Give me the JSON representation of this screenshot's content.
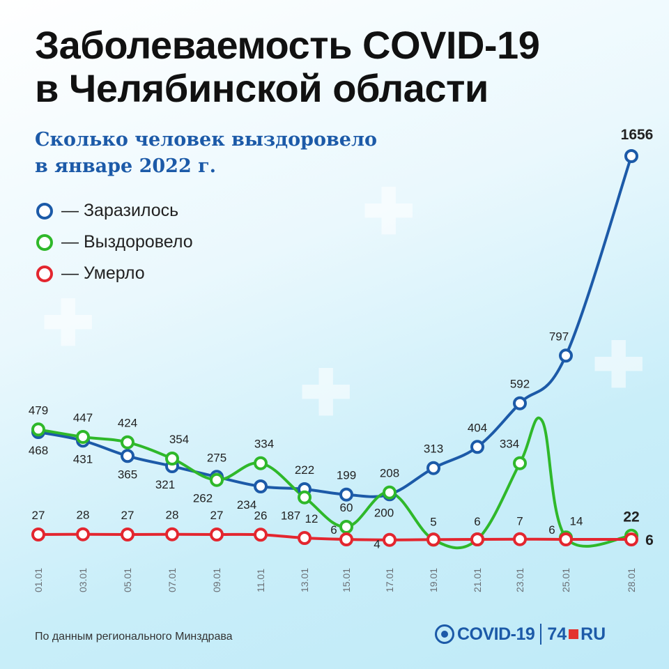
{
  "header": {
    "title_line1": "Заболеваемость COVID-19",
    "title_line2": "в Челябинской области",
    "subtitle_line1": "Сколько человек выздоровело",
    "subtitle_line2": "в январе 2022 г."
  },
  "legend": {
    "items": [
      {
        "label": "— Заразилось",
        "color": "#1c5aa8"
      },
      {
        "label": "— Выздоровело",
        "color": "#2fb82a"
      },
      {
        "label": "— Умерло",
        "color": "#e3262f"
      }
    ]
  },
  "footer": {
    "source": "По данным регионального Минздрава",
    "brand_covid": "COVID-19",
    "brand_num": "74",
    "brand_ru": "RU"
  },
  "colors": {
    "infected": "#1c5aa8",
    "recovered": "#2fb82a",
    "died": "#e3262f"
  },
  "chart_data": {
    "type": "line",
    "x": [
      "01.01",
      "03.01",
      "05.01",
      "07.01",
      "09.01",
      "11.01",
      "13.01",
      "15.01",
      "17.01",
      "19.01",
      "21.01",
      "23.01",
      "25.01",
      "28.01"
    ],
    "series": [
      {
        "name": "Заразилось",
        "values": [
          468,
          431,
          365,
          321,
          275,
          234,
          222,
          199,
          200,
          313,
          404,
          592,
          797,
          1656
        ],
        "labels": [
          "468",
          "431",
          "365",
          "321",
          "275",
          "234",
          "222",
          "199",
          "200",
          "313",
          "404",
          "592",
          "797",
          "1656"
        ]
      },
      {
        "name": "Выздоровело",
        "values": [
          479,
          447,
          424,
          354,
          262,
          334,
          187,
          60,
          208,
          5,
          6,
          334,
          14,
          22
        ],
        "labels": [
          "479",
          "447",
          "424",
          "354",
          "262",
          "334",
          "187",
          "60",
          "208",
          "",
          "",
          "334",
          "14",
          "22"
        ]
      },
      {
        "name": "Умерло",
        "values": [
          27,
          28,
          27,
          28,
          27,
          26,
          12,
          6,
          4,
          5,
          6,
          7,
          6,
          6
        ],
        "labels": [
          "27",
          "28",
          "27",
          "28",
          "27",
          "26",
          "12",
          "6",
          "4",
          "5",
          "6",
          "7",
          "6",
          "6"
        ]
      }
    ],
    "ylim": [
      0,
      1656
    ],
    "grid": false,
    "legend_position": "top-left"
  }
}
